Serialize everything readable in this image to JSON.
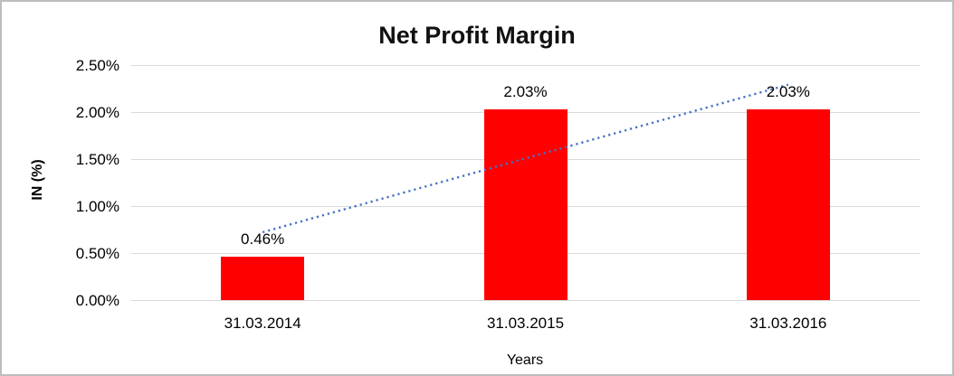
{
  "chart_data": {
    "type": "bar",
    "title": "Net Profit Margin",
    "categories": [
      "31.03.2014",
      "31.03.2015",
      "31.03.2016"
    ],
    "values": [
      0.46,
      2.03,
      2.03
    ],
    "value_labels": [
      "0.46%",
      "2.03%",
      "2.03%"
    ],
    "xlabel": "Years",
    "ylabel": "IN (%)",
    "ylim": [
      0,
      2.5
    ],
    "ytick_step": 0.5,
    "ytick_labels": [
      "0.00%",
      "0.50%",
      "1.00%",
      "1.50%",
      "2.00%",
      "2.50%"
    ],
    "grid": "horizontal",
    "legend": "none",
    "bar_color": "#ff0000",
    "gridline_color": "#d9d9d9",
    "text_color": "#000000",
    "trendline": {
      "type": "linear",
      "style": "dotted",
      "color": "#4472c4"
    }
  }
}
